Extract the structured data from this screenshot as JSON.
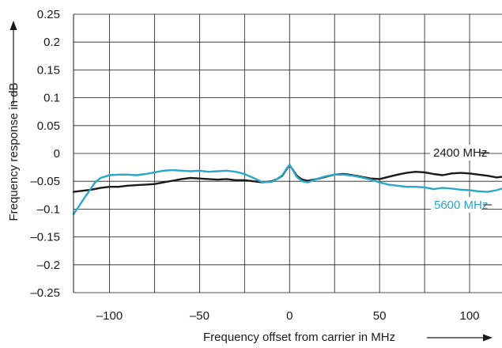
{
  "chart_data": {
    "type": "line",
    "xlabel": "Frequency offset from carrier in MHz",
    "ylabel": "Frequency response in dB",
    "xlim": [
      -120,
      118
    ],
    "ylim": [
      -0.25,
      0.25
    ],
    "x_ticks": [
      -100,
      -50,
      0,
      50,
      100
    ],
    "x_tick_labels": [
      "–100",
      "–50",
      "0",
      "50",
      "100"
    ],
    "x_grid": [
      -100,
      -75,
      -50,
      -25,
      0,
      25,
      50,
      75,
      100
    ],
    "y_ticks": [
      0.25,
      0.2,
      0.15,
      0.1,
      0.05,
      0,
      -0.05,
      -0.1,
      -0.15,
      -0.2,
      -0.25
    ],
    "y_tick_labels": [
      "0.25",
      "0.2",
      "0.15",
      "0.1",
      "0.05",
      "0",
      "–0.05",
      "–0.1",
      "–0.15",
      "–0.2",
      "–0.25"
    ],
    "grid": true,
    "legend": "inline labels at right end of lines",
    "series": [
      {
        "name": "2400 MHz",
        "color": "#1a1a1a",
        "points": [
          [
            -120,
            -0.069
          ],
          [
            -115,
            -0.067
          ],
          [
            -110,
            -0.065
          ],
          [
            -105,
            -0.062
          ],
          [
            -100,
            -0.06
          ],
          [
            -95,
            -0.06
          ],
          [
            -90,
            -0.058
          ],
          [
            -85,
            -0.057
          ],
          [
            -80,
            -0.056
          ],
          [
            -75,
            -0.055
          ],
          [
            -70,
            -0.052
          ],
          [
            -65,
            -0.049
          ],
          [
            -60,
            -0.046
          ],
          [
            -55,
            -0.044
          ],
          [
            -50,
            -0.045
          ],
          [
            -45,
            -0.046
          ],
          [
            -40,
            -0.047
          ],
          [
            -35,
            -0.046
          ],
          [
            -30,
            -0.048
          ],
          [
            -25,
            -0.048
          ],
          [
            -20,
            -0.05
          ],
          [
            -15,
            -0.052
          ],
          [
            -10,
            -0.05
          ],
          [
            -7,
            -0.046
          ],
          [
            -4,
            -0.04
          ],
          [
            -2,
            -0.03
          ],
          [
            0,
            -0.021
          ],
          [
            2,
            -0.03
          ],
          [
            4,
            -0.04
          ],
          [
            7,
            -0.047
          ],
          [
            10,
            -0.049
          ],
          [
            15,
            -0.046
          ],
          [
            20,
            -0.042
          ],
          [
            25,
            -0.038
          ],
          [
            30,
            -0.037
          ],
          [
            35,
            -0.039
          ],
          [
            40,
            -0.042
          ],
          [
            45,
            -0.045
          ],
          [
            50,
            -0.046
          ],
          [
            55,
            -0.042
          ],
          [
            60,
            -0.038
          ],
          [
            65,
            -0.035
          ],
          [
            70,
            -0.033
          ],
          [
            75,
            -0.034
          ],
          [
            80,
            -0.037
          ],
          [
            85,
            -0.039
          ],
          [
            90,
            -0.036
          ],
          [
            95,
            -0.035
          ],
          [
            100,
            -0.036
          ],
          [
            105,
            -0.038
          ],
          [
            110,
            -0.04
          ],
          [
            115,
            -0.043
          ],
          [
            118,
            -0.042
          ]
        ]
      },
      {
        "name": "5600 MHz",
        "color": "#2aa7c9",
        "points": [
          [
            -120,
            -0.109
          ],
          [
            -117,
            -0.095
          ],
          [
            -114,
            -0.08
          ],
          [
            -111,
            -0.066
          ],
          [
            -108,
            -0.052
          ],
          [
            -105,
            -0.044
          ],
          [
            -100,
            -0.039
          ],
          [
            -95,
            -0.038
          ],
          [
            -90,
            -0.038
          ],
          [
            -85,
            -0.039
          ],
          [
            -80,
            -0.037
          ],
          [
            -75,
            -0.034
          ],
          [
            -70,
            -0.031
          ],
          [
            -65,
            -0.03
          ],
          [
            -60,
            -0.031
          ],
          [
            -55,
            -0.032
          ],
          [
            -50,
            -0.031
          ],
          [
            -45,
            -0.033
          ],
          [
            -40,
            -0.032
          ],
          [
            -35,
            -0.031
          ],
          [
            -30,
            -0.033
          ],
          [
            -25,
            -0.037
          ],
          [
            -20,
            -0.044
          ],
          [
            -15,
            -0.052
          ],
          [
            -10,
            -0.051
          ],
          [
            -7,
            -0.046
          ],
          [
            -4,
            -0.039
          ],
          [
            -2,
            -0.029
          ],
          [
            0,
            -0.02
          ],
          [
            2,
            -0.031
          ],
          [
            4,
            -0.042
          ],
          [
            7,
            -0.05
          ],
          [
            10,
            -0.052
          ],
          [
            15,
            -0.046
          ],
          [
            20,
            -0.041
          ],
          [
            25,
            -0.038
          ],
          [
            30,
            -0.038
          ],
          [
            35,
            -0.04
          ],
          [
            40,
            -0.043
          ],
          [
            45,
            -0.047
          ],
          [
            50,
            -0.052
          ],
          [
            55,
            -0.056
          ],
          [
            60,
            -0.058
          ],
          [
            65,
            -0.06
          ],
          [
            70,
            -0.06
          ],
          [
            75,
            -0.061
          ],
          [
            80,
            -0.064
          ],
          [
            85,
            -0.062
          ],
          [
            90,
            -0.063
          ],
          [
            95,
            -0.065
          ],
          [
            100,
            -0.066
          ],
          [
            105,
            -0.068
          ],
          [
            110,
            -0.069
          ],
          [
            115,
            -0.066
          ],
          [
            118,
            -0.063
          ]
        ]
      }
    ]
  }
}
